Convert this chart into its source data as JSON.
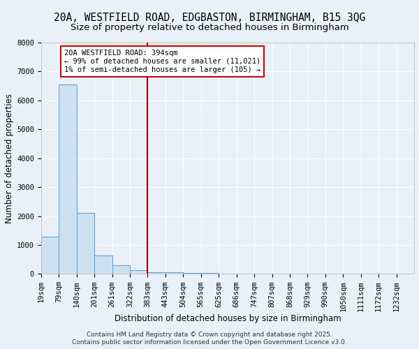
{
  "title_line1": "20A, WESTFIELD ROAD, EDGBASTON, BIRMINGHAM, B15 3QG",
  "title_line2": "Size of property relative to detached houses in Birmingham",
  "xlabel": "Distribution of detached houses by size in Birmingham",
  "ylabel": "Number of detached properties",
  "bin_labels": [
    "19sqm",
    "79sqm",
    "140sqm",
    "201sqm",
    "261sqm",
    "322sqm",
    "383sqm",
    "443sqm",
    "504sqm",
    "565sqm",
    "625sqm",
    "686sqm",
    "747sqm",
    "807sqm",
    "868sqm",
    "929sqm",
    "990sqm",
    "1050sqm",
    "1111sqm",
    "1172sqm",
    "1232sqm"
  ],
  "bin_values": [
    1300,
    6550,
    2100,
    630,
    290,
    130,
    70,
    60,
    40,
    30,
    20,
    15,
    10,
    8,
    6,
    5,
    4,
    3,
    3,
    2,
    0
  ],
  "bar_color": "#cce0f0",
  "bar_edge_color": "#5b9bd5",
  "background_color": "#eaf0f8",
  "grid_color": "#ffffff",
  "vline_x_index": 6,
  "vline_color": "#990000",
  "annotation_text": "20A WESTFIELD ROAD: 394sqm\n← 99% of detached houses are smaller (11,021)\n1% of semi-detached houses are larger (105) →",
  "annotation_box_color": "#ffffff",
  "annotation_box_edge_color": "#cc0000",
  "ylim": [
    0,
    8000
  ],
  "yticks": [
    0,
    1000,
    2000,
    3000,
    4000,
    5000,
    6000,
    7000,
    8000
  ],
  "footer_line1": "Contains HM Land Registry data © Crown copyright and database right 2025.",
  "footer_line2": "Contains public sector information licensed under the Open Government Licence v3.0.",
  "title_fontsize": 10.5,
  "subtitle_fontsize": 9.5,
  "axis_label_fontsize": 8.5,
  "tick_fontsize": 7.5,
  "annotation_fontsize": 7.5,
  "footer_fontsize": 6.5
}
